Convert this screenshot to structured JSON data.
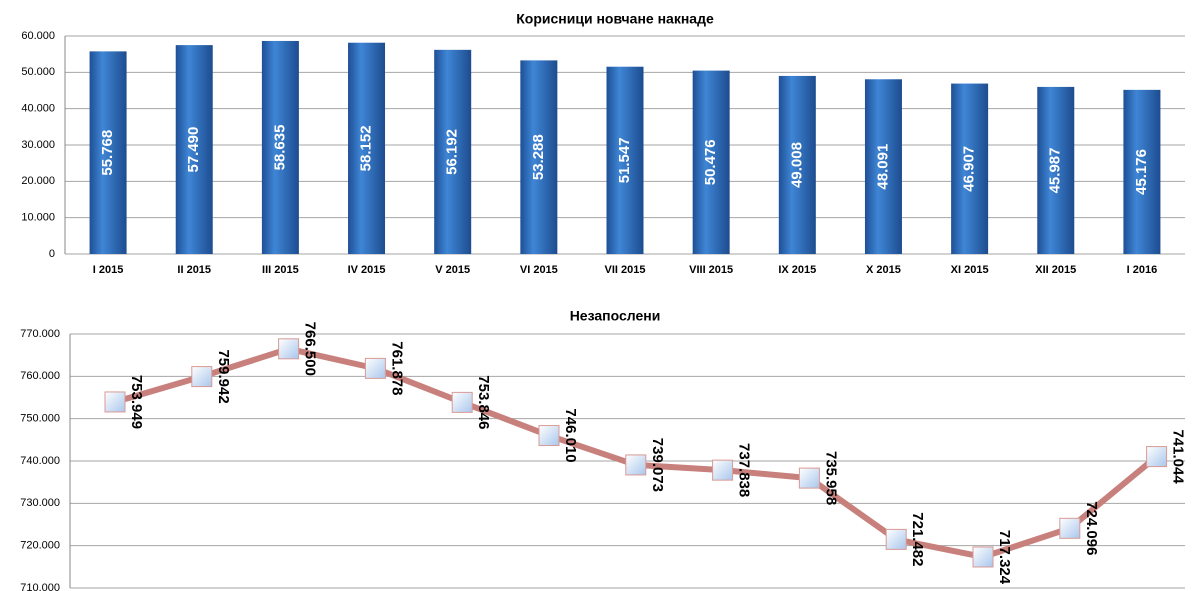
{
  "chart_data": [
    {
      "type": "bar",
      "title": "Корисници новчане накнаде",
      "categories": [
        "I 2015",
        "II 2015",
        "III 2015",
        "IV 2015",
        "V 2015",
        "VI 2015",
        "VII 2015",
        "VIII 2015",
        "IX 2015",
        "X 2015",
        "XI 2015",
        "XII 2015",
        "I 2016"
      ],
      "values": [
        55768,
        57490,
        58635,
        58152,
        56192,
        53288,
        51547,
        50476,
        49008,
        48091,
        46907,
        45987,
        45176
      ],
      "value_labels": [
        "55.768",
        "57.490",
        "58.635",
        "58.152",
        "56.192",
        "53.288",
        "51.547",
        "50.476",
        "49.008",
        "48.091",
        "46.907",
        "45.987",
        "45.176"
      ],
      "color": "#2f6fc0",
      "ylim": [
        0,
        60000
      ],
      "yticks": [
        0,
        {
          "value": 10000,
          "label": "10.000"
        },
        {
          "value": 20000,
          "label": "20.000"
        },
        {
          "value": 30000,
          "label": "30.000"
        },
        {
          "value": 40000,
          "label": "40.000"
        },
        {
          "value": 50000,
          "label": "50.000"
        },
        {
          "value": 60000,
          "label": "60.000"
        }
      ],
      "grid": true
    },
    {
      "type": "line",
      "title": "Незапослени",
      "categories": [
        null,
        null,
        null,
        null,
        null,
        null,
        null,
        null,
        null,
        null,
        null,
        null,
        null
      ],
      "values": [
        753949,
        759942,
        766500,
        761878,
        753846,
        746010,
        739073,
        737838,
        735958,
        721482,
        717324,
        724096,
        741044
      ],
      "value_labels": [
        "753.949",
        "759.942",
        "766.500",
        "761.878",
        "753.846",
        "746.010",
        "739.073",
        "737.838",
        "735.958",
        "721.482",
        "717.324",
        "724.096",
        "741.044"
      ],
      "color": "#c8807c",
      "ylim": [
        710000,
        770000
      ],
      "yticks": [
        {
          "value": 710000,
          "label": "710.000"
        },
        {
          "value": 720000,
          "label": "720.000"
        },
        {
          "value": 730000,
          "label": "730.000"
        },
        {
          "value": 740000,
          "label": "740.000"
        },
        {
          "value": 750000,
          "label": "750.000"
        },
        {
          "value": 760000,
          "label": "760.000"
        },
        {
          "value": 770000,
          "label": "770.000"
        }
      ],
      "grid": true
    }
  ]
}
